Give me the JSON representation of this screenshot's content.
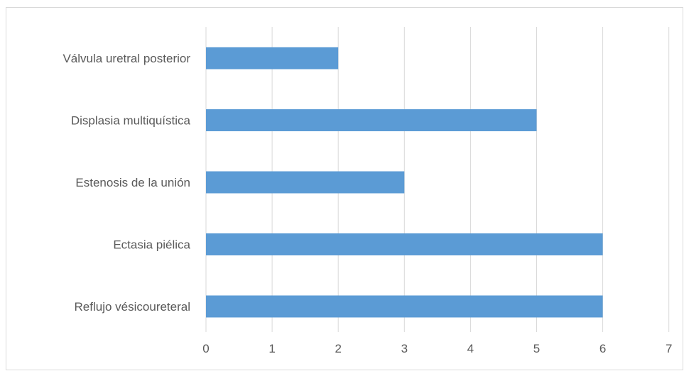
{
  "chart_data": {
    "type": "bar",
    "orientation": "horizontal",
    "title": "",
    "xlabel": "",
    "ylabel": "",
    "categories": [
      "Válvula uretral posterior",
      "Displasia multiquística",
      "Estenosis de la unión",
      "Ectasia piélica",
      "Reflujo vésicoureteral"
    ],
    "values": [
      2,
      5,
      3,
      6,
      6
    ],
    "xlim": [
      0,
      7
    ],
    "xticks": [
      "0",
      "1",
      "2",
      "3",
      "4",
      "5",
      "6",
      "7"
    ],
    "grid": true,
    "legend": "none",
    "bar_color": "#5b9bd5",
    "grid_color": "#d9d9d9",
    "text_color": "#595959"
  }
}
